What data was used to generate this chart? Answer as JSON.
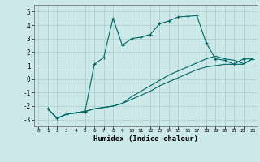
{
  "title": "",
  "xlabel": "Humidex (Indice chaleur)",
  "bg_color": "#cce8e8",
  "grid_color": "#aacccc",
  "line_color": "#006666",
  "xlim": [
    -0.5,
    23.5
  ],
  "ylim": [
    -3.5,
    5.5
  ],
  "xticks": [
    0,
    1,
    2,
    3,
    4,
    5,
    6,
    7,
    8,
    9,
    10,
    11,
    12,
    13,
    14,
    15,
    16,
    17,
    18,
    19,
    20,
    21,
    22,
    23
  ],
  "yticks": [
    -3,
    -2,
    -1,
    0,
    1,
    2,
    3,
    4,
    5
  ],
  "line1_x": [
    1,
    2,
    3,
    4,
    5,
    6,
    7,
    8,
    9,
    10,
    11,
    12,
    13,
    14,
    15,
    16,
    17,
    18,
    19,
    20,
    21,
    22,
    23
  ],
  "line1_y": [
    -2.2,
    -2.9,
    -2.6,
    -2.5,
    -2.4,
    1.1,
    1.6,
    4.5,
    2.5,
    3.0,
    3.1,
    3.3,
    4.1,
    4.3,
    4.6,
    4.65,
    4.7,
    2.7,
    1.5,
    1.4,
    1.1,
    1.5,
    1.5
  ],
  "line2_x": [
    1,
    2,
    3,
    4,
    5,
    6,
    7,
    8,
    9,
    10,
    11,
    12,
    13,
    14,
    15,
    16,
    17,
    18,
    19,
    20,
    21,
    22,
    23
  ],
  "line2_y": [
    -2.2,
    -2.9,
    -2.6,
    -2.5,
    -2.4,
    -2.2,
    -2.1,
    -2.0,
    -1.8,
    -1.5,
    -1.2,
    -0.9,
    -0.5,
    -0.2,
    0.1,
    0.4,
    0.7,
    0.9,
    1.0,
    1.1,
    1.1,
    1.1,
    1.5
  ],
  "line3_x": [
    1,
    2,
    3,
    4,
    5,
    6,
    7,
    8,
    9,
    10,
    11,
    12,
    13,
    14,
    15,
    16,
    17,
    18,
    19,
    20,
    21,
    22,
    23
  ],
  "line3_y": [
    -2.2,
    -2.9,
    -2.6,
    -2.5,
    -2.4,
    -2.2,
    -2.1,
    -2.0,
    -1.8,
    -1.3,
    -0.9,
    -0.5,
    -0.1,
    0.3,
    0.6,
    0.9,
    1.2,
    1.5,
    1.7,
    1.5,
    1.4,
    1.15,
    1.5
  ]
}
